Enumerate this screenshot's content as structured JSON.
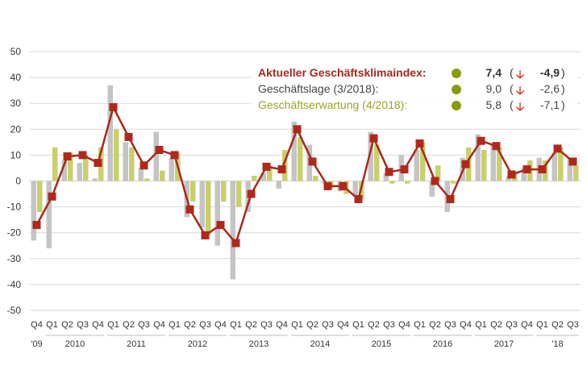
{
  "colors": {
    "lage": "#c4c4c4",
    "erwartung": "#c9cf6b",
    "klima": "#a52a1c",
    "klima_marker": "#b0281c",
    "legend_dot": "#8c9a12",
    "arrow": "#d23b1a",
    "grid": "#d9d9d9"
  },
  "legend": {
    "klima": {
      "label": "Aktueller Geschäftsklimaindex:",
      "value": "7,4",
      "paren_open": "(",
      "arrow": "down-arrow-icon",
      "arrow_glyph": "🡣",
      "change": "-4,9",
      "paren_close": ")"
    },
    "lage": {
      "label": "Geschäftslage (3/2018):",
      "value": "9,0",
      "paren_open": "(",
      "arrow": "down-arrow-icon",
      "arrow_glyph": "🡣",
      "change": "-2,6",
      "paren_close": ")"
    },
    "erwartung": {
      "label": "Geschäftserwartung (4/2018):",
      "value": "5,8",
      "paren_open": "(",
      "arrow": "down-arrow-icon",
      "arrow_glyph": "🡣",
      "change": "-7,1",
      "paren_close": ")"
    }
  },
  "chart_data": {
    "type": "bar+line",
    "title": "",
    "xlabel": "",
    "ylabel": "",
    "ylim": [
      -50,
      50
    ],
    "yticks": [
      50,
      40,
      30,
      20,
      10,
      0,
      -10,
      -20,
      -30,
      -40,
      -50
    ],
    "grid": true,
    "quarters": [
      "Q4",
      "Q1",
      "Q2",
      "Q3",
      "Q4",
      "Q1",
      "Q2",
      "Q3",
      "Q4",
      "Q1",
      "Q2",
      "Q3",
      "Q4",
      "Q1",
      "Q2",
      "Q3",
      "Q4",
      "Q1",
      "Q2",
      "Q3",
      "Q4",
      "Q1",
      "Q2",
      "Q3",
      "Q4",
      "Q1",
      "Q2",
      "Q3",
      "Q4",
      "Q1",
      "Q2",
      "Q3",
      "Q4",
      "Q1",
      "Q2",
      "Q3"
    ],
    "years": [
      {
        "label": "'09",
        "start": 0,
        "end": 0
      },
      {
        "label": "2010",
        "start": 1,
        "end": 4
      },
      {
        "label": "2011",
        "start": 5,
        "end": 8
      },
      {
        "label": "2012",
        "start": 9,
        "end": 12
      },
      {
        "label": "2013",
        "start": 13,
        "end": 16
      },
      {
        "label": "2014",
        "start": 17,
        "end": 20
      },
      {
        "label": "2015",
        "start": 21,
        "end": 24
      },
      {
        "label": "2016",
        "start": 25,
        "end": 28
      },
      {
        "label": "2017",
        "start": 29,
        "end": 32
      },
      {
        "label": "'18",
        "start": 33,
        "end": 35
      }
    ],
    "series": [
      {
        "name": "Geschäftslage",
        "type": "bar",
        "values": [
          -23,
          -26,
          8,
          7,
          1,
          37,
          15,
          5,
          19,
          9,
          -14,
          -18,
          -25,
          -38,
          -12,
          3,
          -3,
          23,
          14,
          -1,
          -4,
          -6,
          19,
          3,
          10,
          12,
          -6,
          -12,
          9,
          18,
          14,
          2,
          5,
          9,
          11,
          9
        ]
      },
      {
        "name": "Geschäftserwartung",
        "type": "bar",
        "values": [
          -12,
          13,
          11,
          10,
          13,
          20,
          13,
          1,
          4,
          11,
          -8,
          -21,
          -8,
          -10,
          2,
          6,
          12,
          17,
          2,
          -3,
          -5,
          -7,
          14,
          -1,
          -1,
          15,
          6,
          -1,
          13,
          12,
          13,
          3,
          8,
          8,
          13,
          6
        ]
      },
      {
        "name": "Geschäftsklimaindex",
        "type": "line",
        "values": [
          -17,
          -6,
          9.5,
          10,
          7,
          28.5,
          17,
          6,
          12,
          10,
          -11,
          -21,
          -17,
          -24,
          -5,
          5.5,
          4.5,
          20,
          7.5,
          -2,
          -2,
          -7,
          16.5,
          3.5,
          4.5,
          14.5,
          0,
          -7,
          6.5,
          15.5,
          13.5,
          2.5,
          4.5,
          4.5,
          12.5,
          7.5
        ]
      }
    ]
  }
}
